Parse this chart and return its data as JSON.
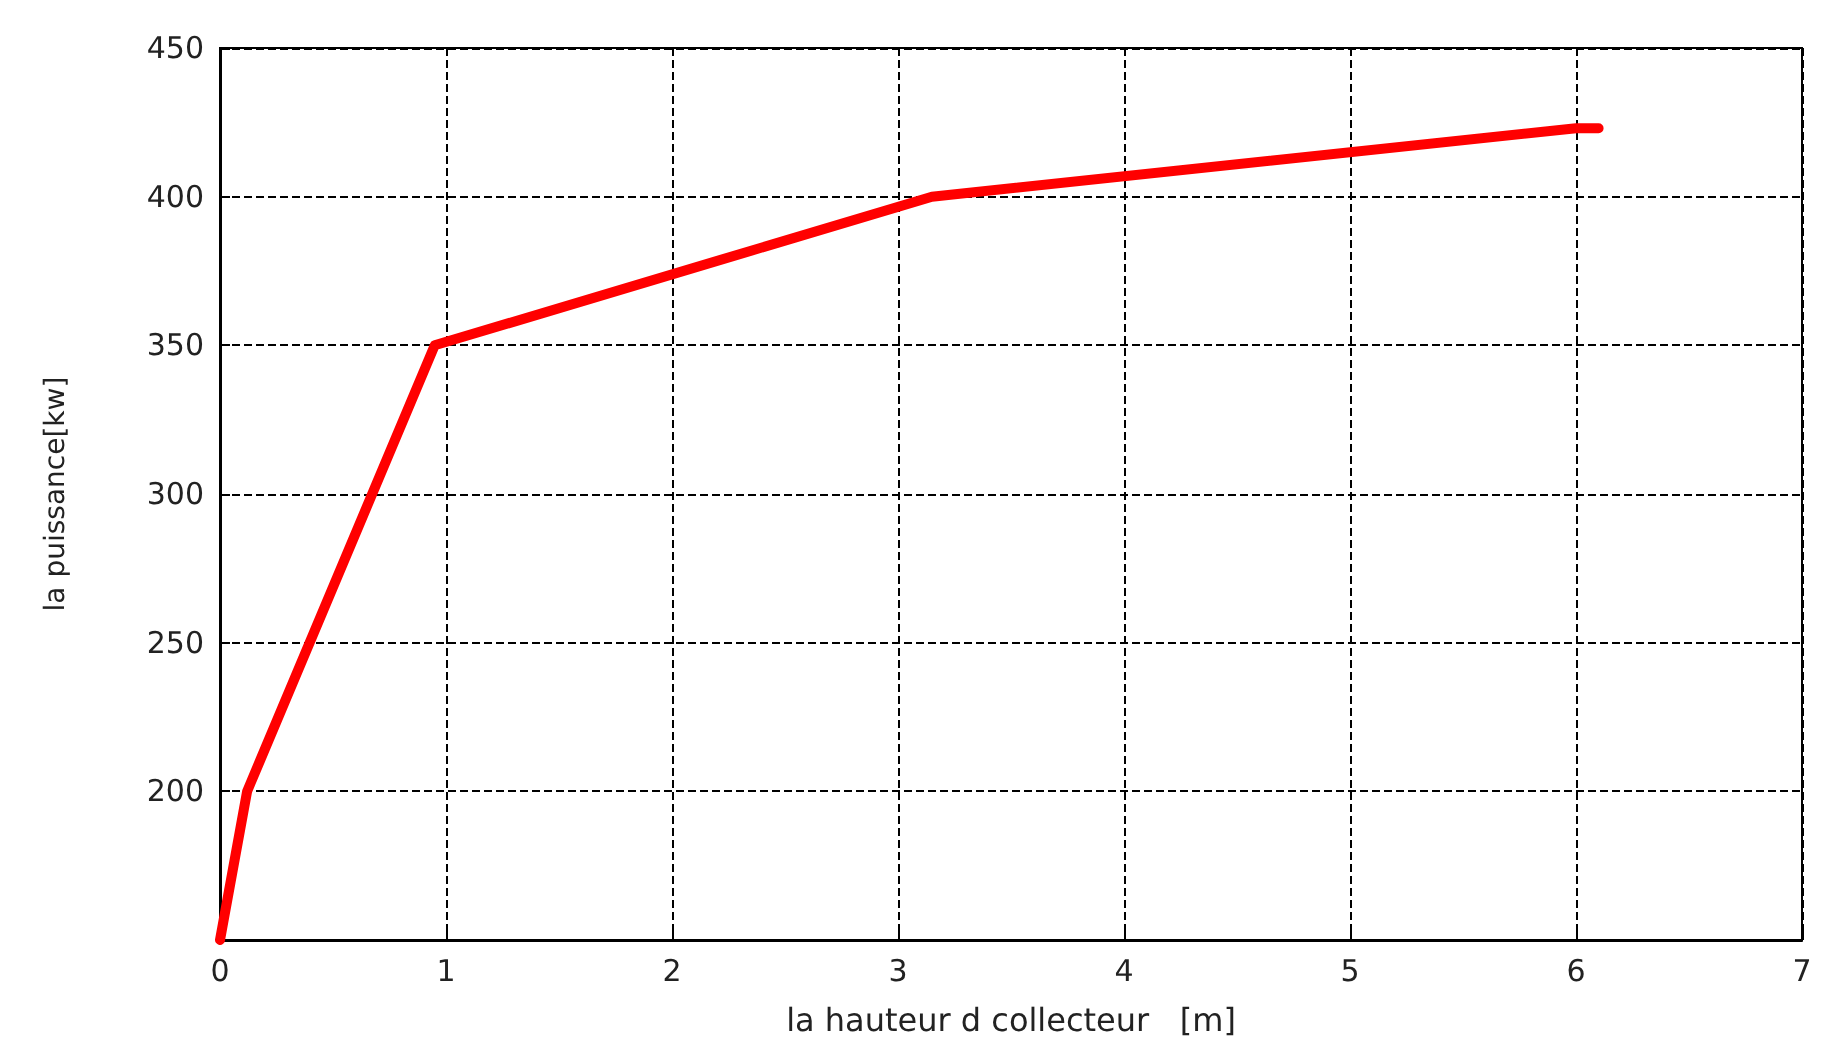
{
  "chart_data": {
    "type": "line",
    "xlabel": "la hauteur d collecteur   [m]",
    "ylabel": "la puissance[kw]",
    "x": [
      0,
      0.12,
      0.95,
      3.15,
      6.0,
      6.1
    ],
    "series": [
      {
        "color": "#ff0000",
        "values": [
          150,
          200,
          350,
          400,
          423,
          423
        ]
      }
    ],
    "xlim": [
      0,
      7
    ],
    "xticks": [
      0,
      1,
      2,
      3,
      4,
      5,
      6,
      7
    ],
    "ylim": [
      150,
      450
    ],
    "yticks": [
      {
        "value": 150,
        "label": null
      },
      200,
      250,
      300,
      350,
      400,
      450
    ],
    "grid": true,
    "marker": "none",
    "line_style": "solid"
  }
}
